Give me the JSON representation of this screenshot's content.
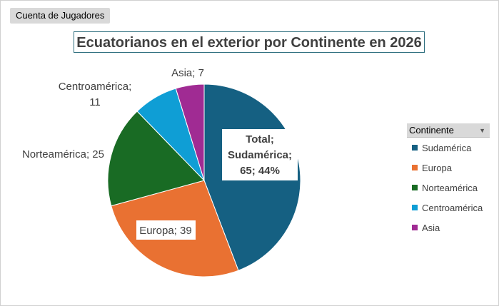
{
  "pivot": {
    "field_button": "Cuenta de Jugadores"
  },
  "legend": {
    "header": "Continente",
    "dropdown_icon": "dropdown-arrow-icon"
  },
  "chart_data": {
    "type": "pie",
    "title": "Ecuatorianos en el exterior por Continente en 2026",
    "categories": [
      "Sudamérica",
      "Europa",
      "Norteamérica",
      "Centroamérica",
      "Asia"
    ],
    "values": [
      65,
      39,
      25,
      11,
      7
    ],
    "colors": [
      "#156082",
      "#e97132",
      "#196b24",
      "#0f9ed5",
      "#a02b93"
    ],
    "data_labels": {
      "sudamerica": [
        "Total;",
        "Sudamérica;",
        "65; 44%"
      ],
      "europa": "Europa; 39",
      "norteamerica": "Norteamérica; 25",
      "centroamerica": [
        "Centroamérica;",
        "11"
      ],
      "asia": "Asia; 7"
    },
    "legend_position": "right"
  }
}
